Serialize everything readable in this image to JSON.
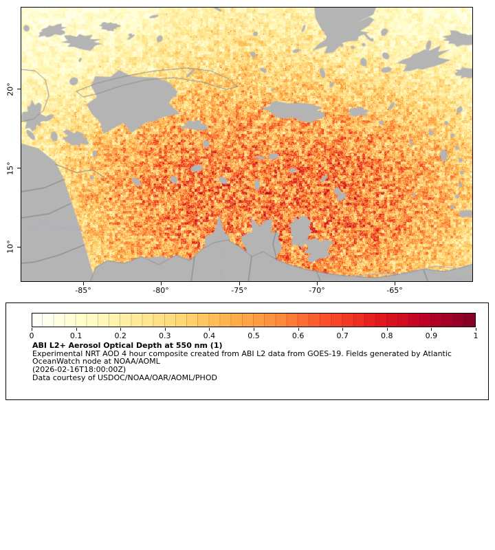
{
  "map": {
    "lat_ticks": [
      "20°",
      "15°",
      "10°"
    ],
    "lon_ticks": [
      "-85°",
      "-80°",
      "-75°",
      "-70°",
      "-65°"
    ]
  },
  "colorbar": {
    "ticks": [
      "0",
      "0.1",
      "0.2",
      "0.3",
      "0.4",
      "0.5",
      "0.6",
      "0.7",
      "0.8",
      "0.9",
      "1"
    ],
    "stops": [
      "#ffffff",
      "#ffffcc",
      "#ffeda0",
      "#fed976",
      "#feb24c",
      "#fd8d3c",
      "#fc4e2a",
      "#e31a1c",
      "#bd0026",
      "#800026"
    ],
    "min": 0,
    "max": 1
  },
  "legend": {
    "title": "ABI L2+ Aerosol Optical Depth at 550 nm (1)",
    "description": "Experimental NRT AOD 4 hour composite created from ABI L2 data from GOES-19. Fields generated by Atlantic OceanWatch node at NOAA/AOML",
    "timestamp": "(2026-02-16T18:00:00Z)",
    "courtesy": "Data courtesy of USDOC/NOAA/OAR/AOML/PHOD"
  },
  "map_colors": {
    "land_gray": "#b4b4b4",
    "coast_line": "#909090",
    "border_line": "#7e7e7e",
    "river_blue": "#9db3cc"
  }
}
